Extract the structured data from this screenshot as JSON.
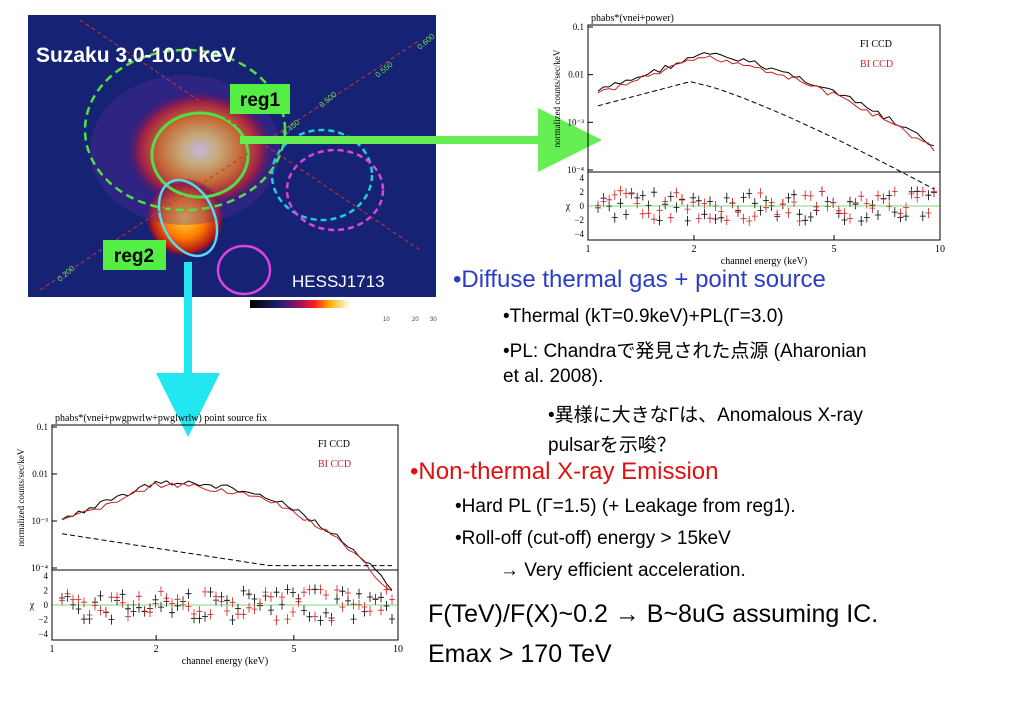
{
  "image": {
    "title": "Suzaku 3.0-10.0 keV",
    "regions": [
      "reg1",
      "reg2"
    ],
    "source": "HESSJ1713",
    "grid_labels": [
      "0.600",
      "0.550",
      "0.500",
      "0.450",
      "0.200"
    ],
    "colorbar_ticks": [
      "10",
      "20",
      "30"
    ]
  },
  "spectrum1": {
    "model": "phabs*(vnei+power)",
    "ylabel": "normalized counts/sec/keV",
    "yticks": [
      "0.1",
      "0.01",
      "10⁻³",
      "10⁻⁴"
    ],
    "resid_label": "χ",
    "resid_ticks": [
      "4",
      "2",
      "0",
      "−2",
      "−4"
    ],
    "xlabel": "channel energy (keV)",
    "xticks": [
      "1",
      "2",
      "5",
      "10"
    ],
    "legend": [
      "FI CCD",
      "BI CCD"
    ]
  },
  "spectrum2": {
    "model": "phabs*(vnei+pwgpwrlw+pwglwrlw) point source fix",
    "ylabel": "normalized counts/sec/keV",
    "yticks": [
      "0.1",
      "0.01",
      "10⁻³",
      "10⁻⁴"
    ],
    "resid_label": "χ",
    "resid_ticks": [
      "4",
      "2",
      "0",
      "−2",
      "−4"
    ],
    "xlabel": "channel energy (keV)",
    "xticks": [
      "1",
      "2",
      "5",
      "10"
    ],
    "legend": [
      "FI CCD",
      "BI CCD"
    ]
  },
  "text": {
    "thermal_head": "•Diffuse thermal gas + point source",
    "thermal_items": [
      "•Thermal (kT=0.9keV)+PL(Γ=3.0)",
      "•PL: Chandraで発見された点源 (Aharonian",
      "et al. 2008)."
    ],
    "thermal_sub": [
      "•異様に大きなΓは、Anomalous X-ray",
      "pulsarを示唆？"
    ],
    "nonthermal_head": "•Non-thermal X-ray Emission",
    "nonthermal_items": [
      "•Hard PL (Γ=1.5) (+ Leakage from reg1).",
      "•Roll-off (cut-off) energy > 15keV"
    ],
    "nonthermal_sub": "→ Very efficient acceleration.",
    "conclusion": [
      "F(TeV)/F(X)~0.2 → B~8uG assuming IC.",
      "Emax > 170 TeV"
    ]
  }
}
